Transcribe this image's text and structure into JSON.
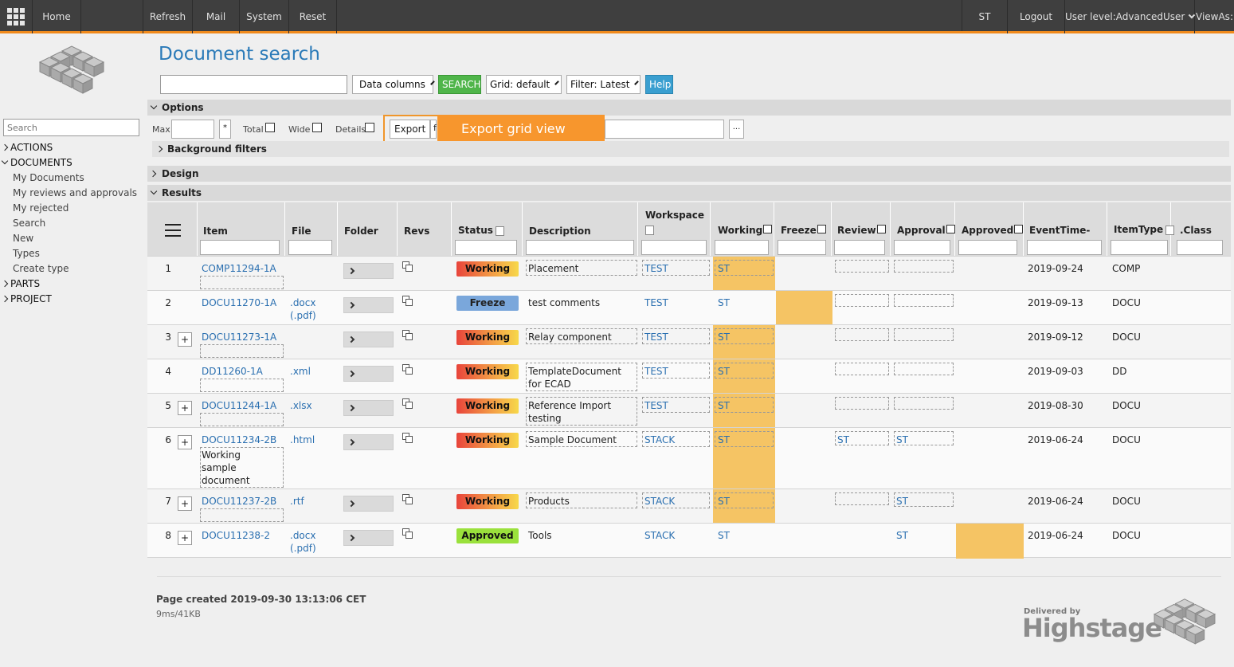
{
  "topbar": {
    "home": "Home",
    "refresh": "Refresh",
    "mail": "Mail",
    "system": "System",
    "reset": "Reset",
    "user": "ST",
    "logout": "Logout",
    "user_level": "User level:AdvancedUser",
    "views_as": "ViewAs:"
  },
  "sidebar": {
    "search_placeholder": "Search",
    "items": [
      {
        "label": "ACTIONS",
        "type": "top",
        "expanded": false
      },
      {
        "label": "DOCUMENTS",
        "type": "top",
        "expanded": true
      },
      {
        "label": "My Documents",
        "type": "sub"
      },
      {
        "label": "My reviews and approvals",
        "type": "sub"
      },
      {
        "label": "My rejected",
        "type": "sub"
      },
      {
        "label": "Search",
        "type": "sub"
      },
      {
        "label": "New",
        "type": "sub"
      },
      {
        "label": "Types",
        "type": "sub"
      },
      {
        "label": "Create type",
        "type": "sub"
      },
      {
        "label": "PARTS",
        "type": "top",
        "expanded": false
      },
      {
        "label": "PROJECT",
        "type": "top",
        "expanded": false
      }
    ]
  },
  "header": {
    "title": "Document search",
    "data_columns": "Data columns",
    "search_btn": "SEARCH",
    "grid": "Grid: default",
    "filter": "Filter: Latest",
    "help": "Help"
  },
  "options": {
    "section": "Options",
    "max": "Max",
    "star": "*",
    "total": "Total",
    "wide": "Wide",
    "details": "Details",
    "export": "Export",
    "f_partial": "f",
    "ellipsis": "...",
    "tooltip": "Export grid view",
    "background_filters": "Background filters"
  },
  "design": {
    "section": "Design"
  },
  "results": {
    "section": "Results",
    "columns": {
      "item": "Item",
      "file": "File",
      "folder": "Folder",
      "revs": "Revs",
      "status": "Status",
      "description": "Description",
      "workspace": "Workspace",
      "working": "Working",
      "freeze": "Freeze",
      "review": "Review",
      "approval": "Approval",
      "approved": "Approved",
      "eventtime": "EventTime-",
      "itemtype": "ItemType",
      "class": ".Class"
    },
    "rows": [
      {
        "n": "1",
        "item": "COMP11294-1A",
        "file": "",
        "file2": "",
        "status": "Working",
        "desc": "Placement",
        "desc2": "",
        "ws": "TEST",
        "working": "ST",
        "freeze": "",
        "review": "",
        "approval": "",
        "approved": "",
        "date": "2019-09-24",
        "type": "COMP"
      },
      {
        "n": "2",
        "item": "DOCU11270-1A",
        "file": ".docx",
        "file2": "(.pdf)",
        "status": "Freeze",
        "desc": "test comments",
        "desc2": "",
        "ws": "TEST",
        "working": "ST",
        "freeze": "",
        "review": "",
        "approval": "",
        "approved": "",
        "date": "2019-09-13",
        "type": "DOCU"
      },
      {
        "n": "3",
        "item": "DOCU11273-1A",
        "file": "",
        "file2": "",
        "status": "Working",
        "desc": "Relay component",
        "desc2": "",
        "ws": "TEST",
        "working": "ST",
        "freeze": "",
        "review": "",
        "approval": "",
        "approved": "",
        "date": "2019-09-12",
        "type": "DOCU"
      },
      {
        "n": "4",
        "item": "DD11260-1A",
        "file": ".xml",
        "file2": "",
        "status": "Working",
        "desc": "TemplateDocument",
        "desc2": "for ECAD",
        "ws": "TEST",
        "working": "ST",
        "freeze": "",
        "review": "",
        "approval": "",
        "approved": "",
        "date": "2019-09-03",
        "type": "DD"
      },
      {
        "n": "5",
        "item": "DOCU11244-1A",
        "file": ".xlsx",
        "file2": "",
        "status": "Working",
        "desc": "Reference Import",
        "desc2": "testing",
        "ws": "TEST",
        "working": "ST",
        "freeze": "",
        "review": "",
        "approval": "",
        "approved": "",
        "date": "2019-08-30",
        "type": "DOCU"
      },
      {
        "n": "6",
        "item": "DOCU11234-2B",
        "file": ".html",
        "file2": "",
        "status": "Working",
        "desc": "Sample Document",
        "desc2": "",
        "ws": "STACK",
        "working": "ST",
        "freeze": "",
        "review": "ST",
        "approval": "ST",
        "approved": "",
        "date": "2019-06-24",
        "type": "DOCU",
        "item_note": [
          "Working",
          "sample",
          "document"
        ]
      },
      {
        "n": "7",
        "item": "DOCU11237-2B",
        "file": ".rtf",
        "file2": "",
        "status": "Working",
        "desc": "Products",
        "desc2": "",
        "ws": "STACK",
        "working": "ST",
        "freeze": "",
        "review": "",
        "approval": "ST",
        "approved": "",
        "date": "2019-06-24",
        "type": "DOCU"
      },
      {
        "n": "8",
        "item": "DOCU11238-2",
        "file": ".docx",
        "file2": "(.pdf)",
        "status": "Approved",
        "desc": "Tools",
        "desc2": "",
        "ws": "STACK",
        "working": "ST",
        "freeze": "",
        "review": "",
        "approval": "ST",
        "approved": "",
        "date": "2019-06-24",
        "type": "DOCU"
      }
    ]
  },
  "footer": {
    "page_created": "Page created 2019-09-30 13:13:06 CET",
    "perf": "9ms/41KB",
    "delivered_by": "Delivered by",
    "brand": "Highstage"
  }
}
